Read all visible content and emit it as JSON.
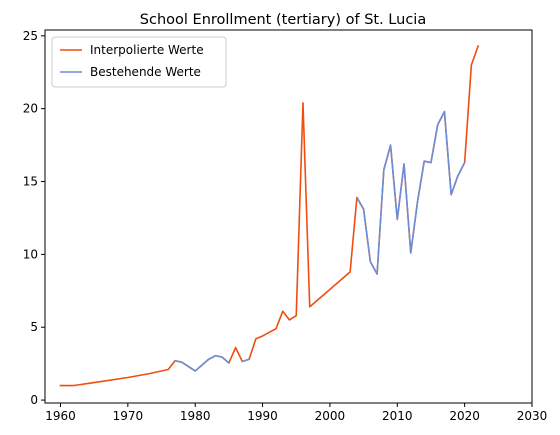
{
  "chart_data": {
    "type": "line",
    "title": "School Enrollment (tertiary) of St. Lucia",
    "xlabel": "",
    "ylabel": "",
    "xlim": [
      1957.7,
      2030
    ],
    "ylim": [
      -0.2,
      25.4
    ],
    "xticks": [
      1960,
      1970,
      1980,
      1990,
      2000,
      2010,
      2020,
      2030
    ],
    "yticks": [
      0,
      5,
      10,
      15,
      20,
      25
    ],
    "grid": false,
    "legend": "upper-left",
    "series": [
      {
        "name": "Interpolierte Werte",
        "color": "#f04e0f",
        "points": [
          [
            1960,
            1.0
          ],
          [
            1962,
            1.0
          ],
          [
            1965,
            1.2
          ],
          [
            1970,
            1.55
          ],
          [
            1973,
            1.8
          ],
          [
            1976,
            2.1
          ],
          [
            1977,
            2.7
          ],
          [
            1978,
            2.6
          ],
          [
            1979,
            2.3
          ],
          [
            1980,
            2.0
          ],
          [
            1981,
            2.4
          ],
          [
            1982,
            2.8
          ],
          [
            1983,
            3.05
          ],
          [
            1984,
            2.95
          ],
          [
            1985,
            2.55
          ],
          [
            1986,
            3.6
          ],
          [
            1987,
            2.65
          ],
          [
            1988,
            2.8
          ],
          [
            1989,
            4.2
          ],
          [
            1990,
            4.4
          ],
          [
            1992,
            4.9
          ],
          [
            1993,
            6.1
          ],
          [
            1994,
            5.5
          ],
          [
            1995,
            5.8
          ],
          [
            1996,
            20.4
          ],
          [
            1997,
            6.4
          ],
          [
            2003,
            8.8
          ],
          [
            2004,
            13.9
          ],
          [
            2005,
            13.1
          ],
          [
            2006,
            9.5
          ],
          [
            2007,
            8.65
          ],
          [
            2008,
            15.8
          ],
          [
            2009,
            17.5
          ],
          [
            2010,
            12.4
          ],
          [
            2011,
            16.2
          ],
          [
            2012,
            10.1
          ],
          [
            2013,
            13.6
          ],
          [
            2014,
            16.4
          ],
          [
            2015,
            16.3
          ],
          [
            2016,
            18.9
          ],
          [
            2017,
            19.8
          ],
          [
            2018,
            14.1
          ],
          [
            2019,
            15.4
          ],
          [
            2020,
            16.3
          ],
          [
            2021,
            23.0
          ],
          [
            2022,
            24.3
          ]
        ]
      },
      {
        "name": "Bestehende Werte",
        "color": "#6a8fd8",
        "points": [
          [
            1977,
            2.7
          ],
          [
            1978,
            2.6
          ],
          [
            1979,
            2.3
          ],
          [
            1980,
            2.0
          ],
          [
            1981,
            2.4
          ],
          [
            1982,
            2.8
          ],
          [
            1983,
            3.05
          ],
          [
            1984,
            2.95
          ],
          [
            1985,
            2.55
          ],
          null,
          [
            1987,
            2.65
          ],
          [
            1988,
            2.8
          ],
          null,
          [
            2004,
            13.9
          ],
          [
            2005,
            13.1
          ],
          [
            2006,
            9.5
          ],
          [
            2007,
            8.65
          ],
          [
            2008,
            15.8
          ],
          [
            2009,
            17.5
          ],
          [
            2010,
            12.4
          ],
          [
            2011,
            16.2
          ],
          [
            2012,
            10.1
          ],
          [
            2013,
            13.6
          ],
          [
            2014,
            16.4
          ],
          [
            2015,
            16.3
          ],
          [
            2016,
            18.9
          ],
          [
            2017,
            19.8
          ],
          [
            2018,
            14.1
          ],
          [
            2019,
            15.4
          ],
          [
            2020,
            16.3
          ]
        ]
      }
    ]
  }
}
